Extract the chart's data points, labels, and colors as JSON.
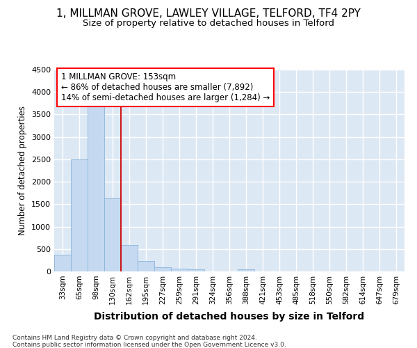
{
  "title1": "1, MILLMAN GROVE, LAWLEY VILLAGE, TELFORD, TF4 2PY",
  "title2": "Size of property relative to detached houses in Telford",
  "xlabel": "Distribution of detached houses by size in Telford",
  "ylabel": "Number of detached properties",
  "categories": [
    "33sqm",
    "65sqm",
    "98sqm",
    "130sqm",
    "162sqm",
    "195sqm",
    "227sqm",
    "259sqm",
    "291sqm",
    "324sqm",
    "356sqm",
    "388sqm",
    "421sqm",
    "453sqm",
    "485sqm",
    "518sqm",
    "550sqm",
    "582sqm",
    "614sqm",
    "647sqm",
    "679sqm"
  ],
  "values": [
    370,
    2500,
    3700,
    1630,
    590,
    230,
    100,
    65,
    40,
    0,
    0,
    50,
    0,
    0,
    0,
    0,
    0,
    0,
    0,
    0,
    0
  ],
  "bar_color": "#c5d9f0",
  "bar_edge_color": "#8ab4d9",
  "vline_color": "#cc0000",
  "vline_pos": 3.5,
  "annotation_line1": "1 MILLMAN GROVE: 153sqm",
  "annotation_line2": "← 86% of detached houses are smaller (7,892)",
  "annotation_line3": "14% of semi-detached houses are larger (1,284) →",
  "ylim_max": 4500,
  "yticks": [
    0,
    500,
    1000,
    1500,
    2000,
    2500,
    3000,
    3500,
    4000,
    4500
  ],
  "bg_color": "#dde8f5",
  "grid_color": "#ffffff",
  "footnote1": "Contains HM Land Registry data © Crown copyright and database right 2024.",
  "footnote2": "Contains public sector information licensed under the Open Government Licence v3.0.",
  "title1_fontsize": 11,
  "title2_fontsize": 9.5,
  "xlabel_fontsize": 10,
  "ylabel_fontsize": 8.5,
  "tick_fontsize": 8,
  "annot_fontsize": 8.5,
  "footnote_fontsize": 6.5
}
